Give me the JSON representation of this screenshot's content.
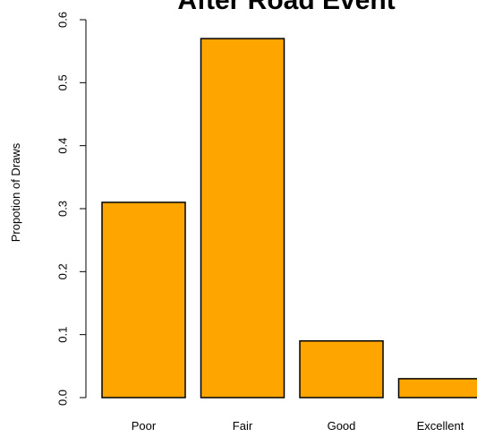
{
  "chart_data": {
    "type": "bar",
    "title": "After Road Event",
    "xlabel": "",
    "ylabel": "Propotion of Draws",
    "categories": [
      "Poor",
      "Fair",
      "Good",
      "Excellent"
    ],
    "values": [
      0.31,
      0.57,
      0.09,
      0.03
    ],
    "ylim": [
      0,
      0.6
    ],
    "yticks": [
      "0.0",
      "0.1",
      "0.2",
      "0.3",
      "0.4",
      "0.5",
      "0.6"
    ],
    "bar_color": "#FFA500",
    "grid": false,
    "legend": "none"
  }
}
